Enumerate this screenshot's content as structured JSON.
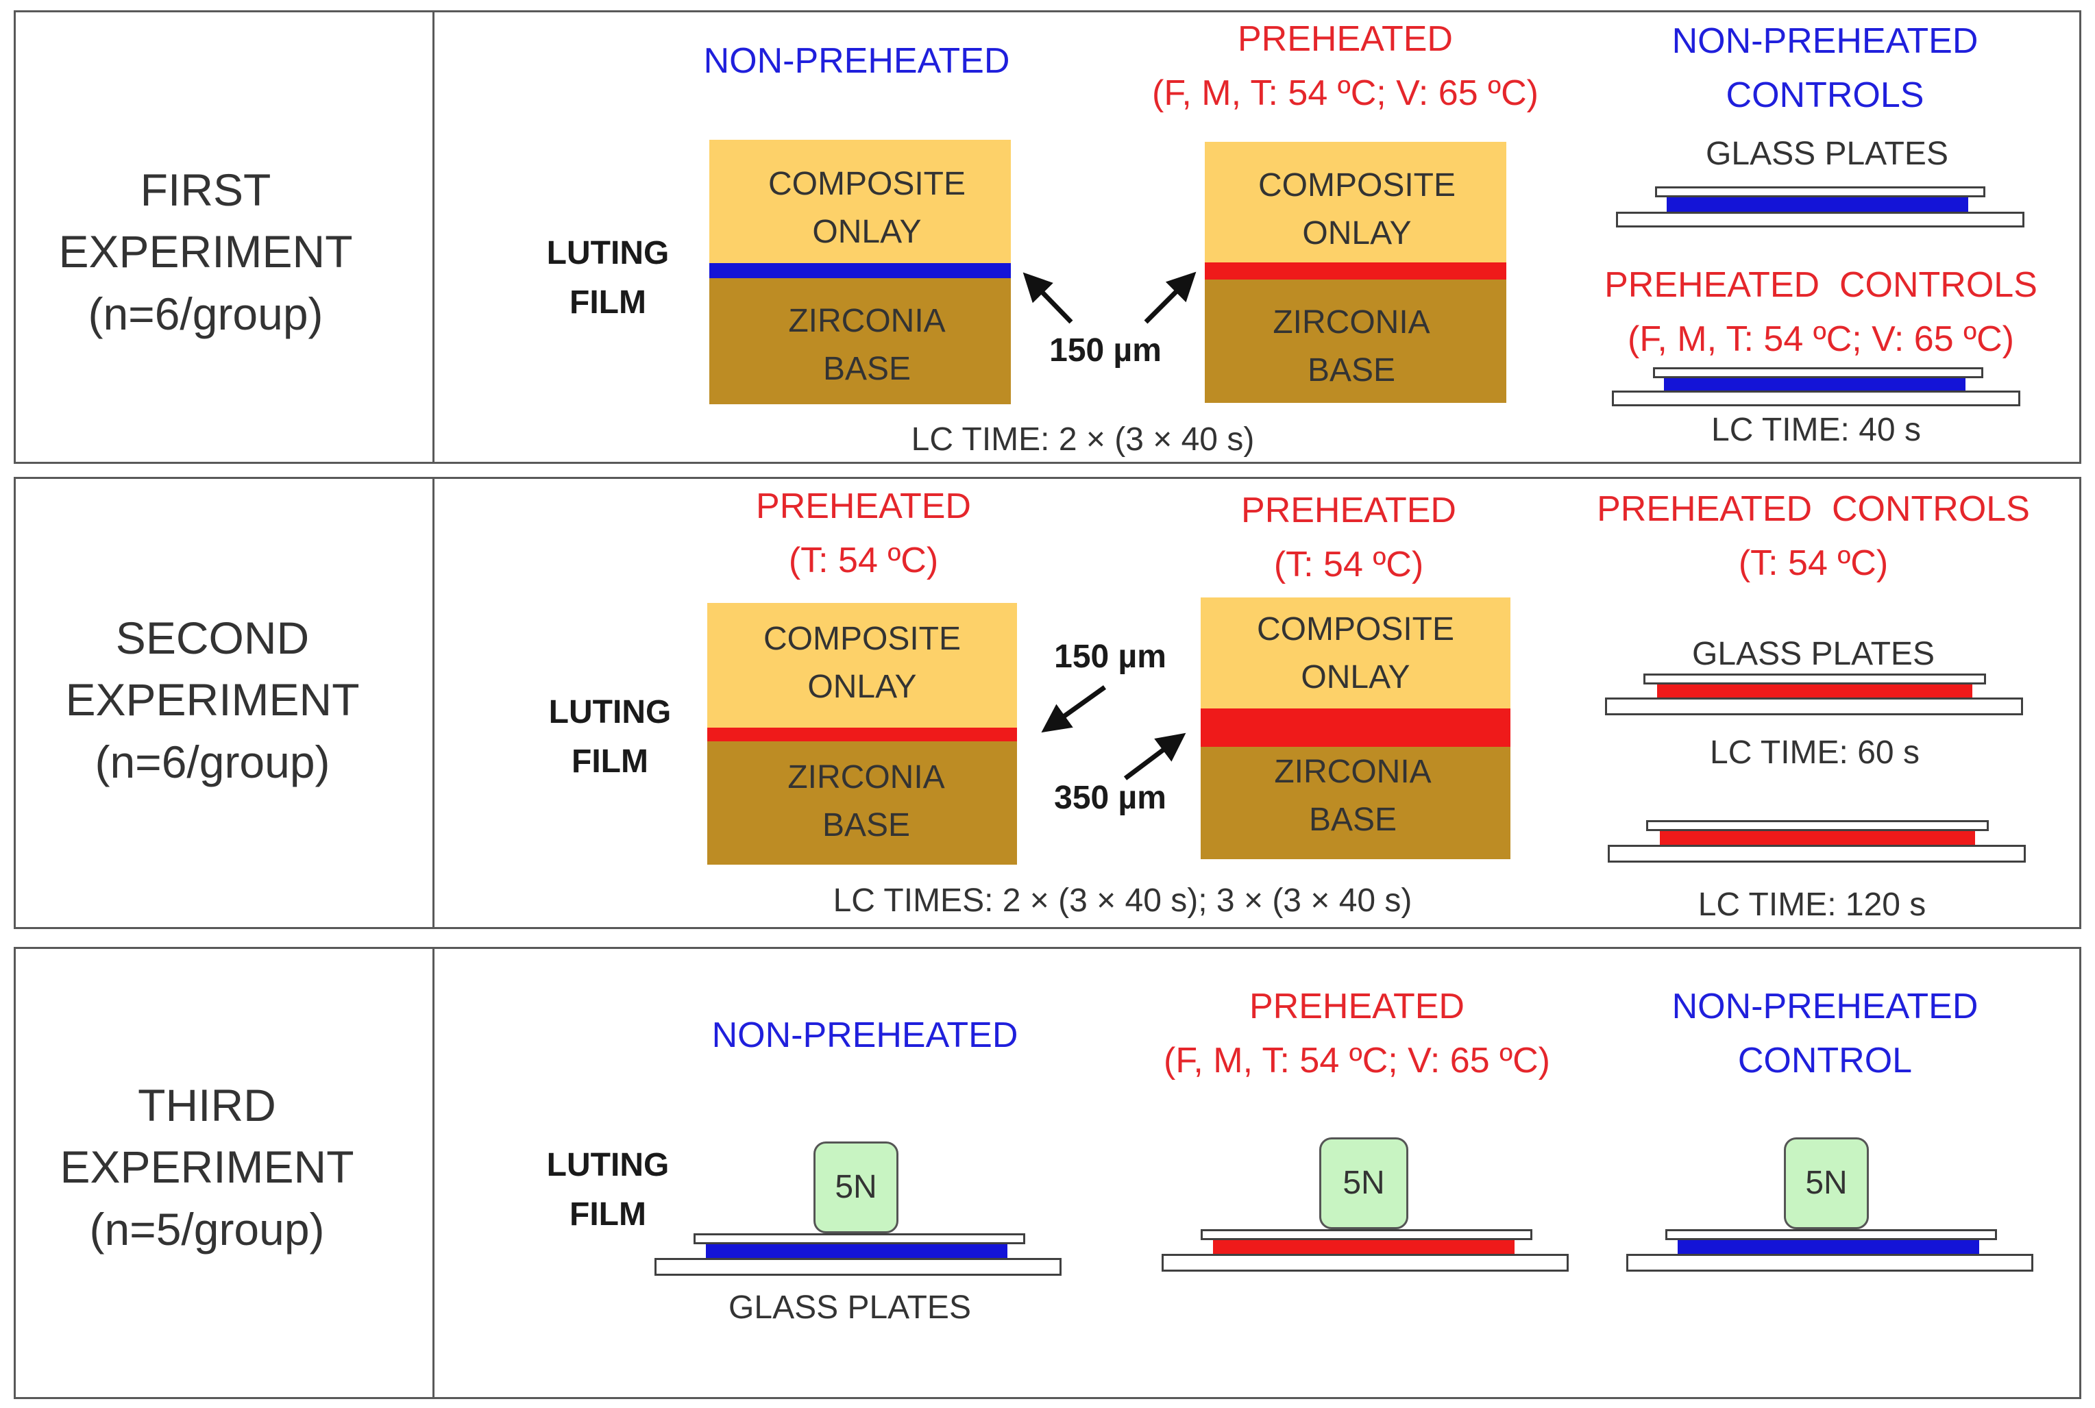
{
  "colors": {
    "non_preheated": "#1f1fdc",
    "preheated": "#e5262b",
    "onlay": "#fdd169",
    "zirconia": "#bd8c24",
    "weight": "#c8f4c2"
  },
  "common": {
    "luting_film": [
      "LUTING",
      "FILM"
    ],
    "onlay": [
      "COMPOSITE",
      "ONLAY"
    ],
    "base": [
      "ZIRCONIA",
      "BASE"
    ],
    "glass_plates": "GLASS PLATES",
    "weight": "5N"
  },
  "first": {
    "label": [
      "FIRST",
      "EXPERIMENT",
      "(n=6/group)"
    ],
    "non_preheated": "NON-PREHEATED",
    "preheated": [
      "PREHEATED",
      "(F, M, T: 54 ºC; V: 65 ºC)"
    ],
    "thickness": "150 µm",
    "lc_time": "LC TIME: 2 × (3 × 40 s)",
    "controls_non": [
      "NON-PREHEATED",
      "CONTROLS"
    ],
    "controls_pre": [
      "PREHEATED  CONTROLS",
      "(F, M, T: 54 ºC; V: 65 ºC)"
    ],
    "controls_lc_time": "LC TIME: 40 s"
  },
  "second": {
    "label": [
      "SECOND",
      "EXPERIMENT",
      "(n=6/group)"
    ],
    "preheated_left": [
      "PREHEATED",
      "(T: 54 ºC)"
    ],
    "preheated_right": [
      "PREHEATED",
      "(T: 54 ºC)"
    ],
    "thickness_top": "150 µm",
    "thickness_bottom": "350 µm",
    "lc_times": "LC TIMES: 2 × (3 × 40 s); 3 × (3 × 40 s)",
    "controls": [
      "PREHEATED  CONTROLS",
      "(T: 54 ºC)"
    ],
    "lc_time_60": "LC TIME: 60 s",
    "lc_time_120": "LC TIME: 120 s"
  },
  "third": {
    "label": [
      "THIRD",
      "EXPERIMENT",
      "(n=5/group)"
    ],
    "non_preheated": "NON-PREHEATED",
    "preheated": [
      "PREHEATED",
      "(F, M, T: 54 ºC; V: 65 ºC)"
    ],
    "control": [
      "NON-PREHEATED",
      "CONTROL"
    ]
  }
}
